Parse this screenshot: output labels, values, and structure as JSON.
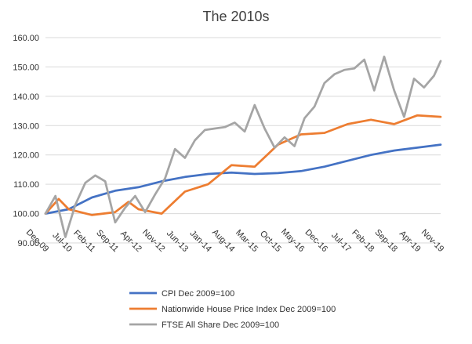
{
  "chart_data": {
    "type": "line",
    "title": "The 2010s",
    "xlabel": "",
    "ylabel": "",
    "ylim": [
      90,
      160
    ],
    "y_ticks": [
      "90.00",
      "100.00",
      "110.00",
      "120.00",
      "130.00",
      "140.00",
      "150.00",
      "160.00"
    ],
    "x_tick_labels": [
      "Dec-09",
      "Jul-10",
      "Feb-11",
      "Sep-11",
      "Apr-12",
      "Nov-12",
      "Jun-13",
      "Jan-14",
      "Aug-14",
      "Mar-15",
      "Oct-15",
      "May-16",
      "Dec-16",
      "Jul-17",
      "Feb-18",
      "Sep-18",
      "Apr-19",
      "Nov-19"
    ],
    "grid": true,
    "legend_position": "bottom",
    "x_start": "Dec-09",
    "x_end": "Nov-19",
    "series": [
      {
        "name": "CPI  Dec 2009=100",
        "color": "#4472C4",
        "x": [
          "Dec-09",
          "Jul-10",
          "Feb-11",
          "Sep-11",
          "Apr-12",
          "Nov-12",
          "Jun-13",
          "Jan-14",
          "Aug-14",
          "Mar-15",
          "Oct-15",
          "May-16",
          "Dec-16",
          "Jul-17",
          "Feb-18",
          "Sep-18",
          "Apr-19",
          "Nov-19"
        ],
        "values": [
          100.0,
          101.5,
          105.5,
          107.8,
          109.0,
          111.0,
          112.5,
          113.5,
          114.0,
          113.5,
          113.8,
          114.5,
          116.0,
          118.0,
          120.0,
          121.5,
          122.5,
          123.5
        ]
      },
      {
        "name": "Nationwide House Price Index  Dec 2009=100",
        "color": "#ED7D31",
        "x": [
          "Dec-09",
          "Apr-10",
          "Jul-10",
          "Feb-11",
          "Sep-11",
          "Jan-12",
          "Apr-12",
          "Nov-12",
          "Jun-13",
          "Jan-14",
          "Aug-14",
          "Mar-15",
          "Oct-15",
          "May-16",
          "Dec-16",
          "Jul-17",
          "Feb-18",
          "Sep-18",
          "Apr-19",
          "Nov-19"
        ],
        "values": [
          100.0,
          105.0,
          101.5,
          99.5,
          100.5,
          104.0,
          101.5,
          100.0,
          107.5,
          110.0,
          116.5,
          116.0,
          123.5,
          127.0,
          127.5,
          130.5,
          132.0,
          130.5,
          133.5,
          133.0
        ]
      },
      {
        "name": "FTSE All Share Dec 2009=100",
        "color": "#A5A5A5",
        "x": [
          "Dec-09",
          "Mar-10",
          "Jun-10",
          "Sep-10",
          "Dec-10",
          "Mar-11",
          "Jun-11",
          "Sep-11",
          "Dec-11",
          "Mar-12",
          "Jun-12",
          "Sep-12",
          "Dec-12",
          "Mar-13",
          "Jun-13",
          "Sep-13",
          "Dec-13",
          "Mar-14",
          "Jun-14",
          "Sep-14",
          "Dec-14",
          "Mar-15",
          "Jun-15",
          "Sep-15",
          "Dec-15",
          "Mar-16",
          "Jun-16",
          "Sep-16",
          "Dec-16",
          "Mar-17",
          "Jun-17",
          "Sep-17",
          "Dec-17",
          "Mar-18",
          "Jun-18",
          "Sep-18",
          "Dec-18",
          "Mar-19",
          "Jun-19",
          "Sep-19",
          "Nov-19"
        ],
        "values": [
          100.0,
          106.0,
          92.0,
          103.0,
          110.5,
          113.0,
          111.0,
          97.0,
          102.0,
          106.0,
          100.5,
          106.5,
          112.0,
          122.0,
          119.0,
          125.0,
          128.5,
          129.0,
          129.5,
          131.0,
          128.0,
          137.0,
          129.0,
          122.5,
          126.0,
          123.0,
          132.5,
          136.5,
          144.5,
          147.5,
          149.0,
          149.5,
          152.5,
          142.0,
          153.5,
          142.0,
          133.0,
          146.0,
          143.0,
          147.0,
          152.0
        ]
      }
    ]
  }
}
